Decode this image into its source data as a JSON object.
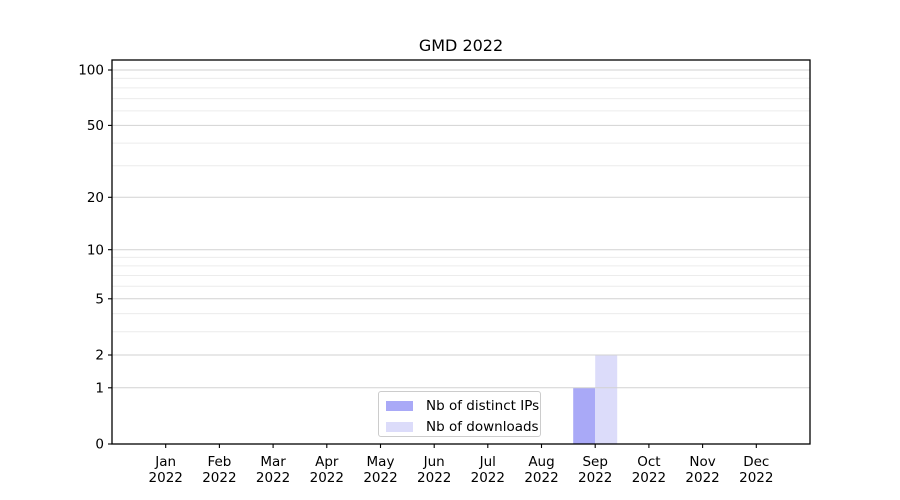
{
  "chart_data": {
    "type": "bar",
    "title": "GMD 2022",
    "categories": [
      "Jan",
      "Feb",
      "Mar",
      "Apr",
      "May",
      "Jun",
      "Jul",
      "Aug",
      "Sep",
      "Oct",
      "Nov",
      "Dec"
    ],
    "category_year": "2022",
    "series": [
      {
        "name": "Nb of distinct IPs",
        "color": "#a9a9f7",
        "values": [
          0,
          0,
          0,
          0,
          0,
          0,
          0,
          0,
          1,
          0,
          0,
          0
        ]
      },
      {
        "name": "Nb of downloads",
        "color": "#dcdcfa",
        "values": [
          0,
          0,
          0,
          0,
          0,
          0,
          0,
          0,
          2,
          0,
          0,
          0
        ]
      }
    ],
    "yticks": [
      0,
      1,
      2,
      5,
      10,
      20,
      50,
      100
    ],
    "ylim": [
      0,
      113
    ],
    "yscale": "log1p",
    "xlabel": "",
    "ylabel": "",
    "grid": true,
    "legend_position": "lower center"
  },
  "colors": {
    "background": "#ffffff",
    "axis": "#000000",
    "text": "#000000",
    "grid_major": "#d2d2d2",
    "grid_minor": "#ececec",
    "legend_border": "#cccccc"
  }
}
